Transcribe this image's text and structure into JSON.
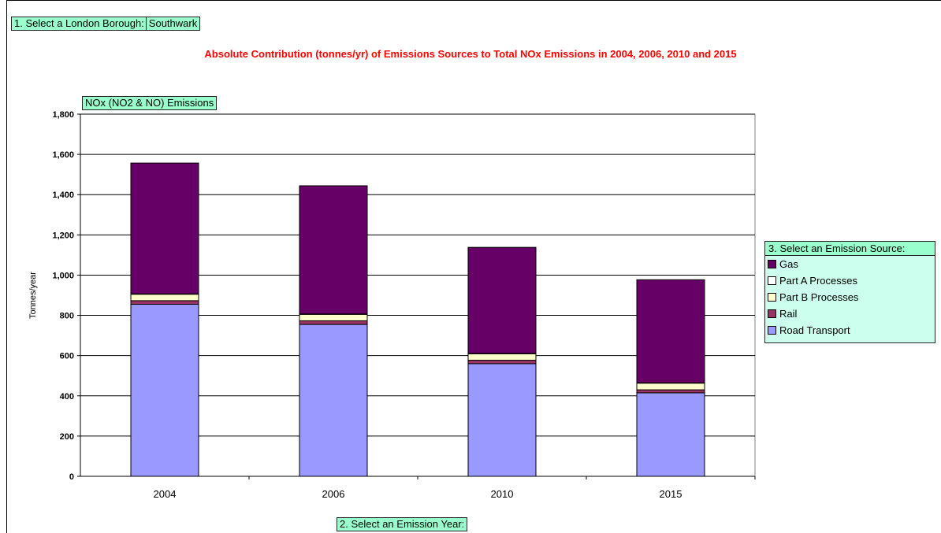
{
  "controls": {
    "borough_label": "1. Select a London Borough:",
    "borough_value": "Southwark",
    "pollutant_value": "NOx (NO2 & NO) Emissions",
    "year_label": "2. Select an Emission Year:",
    "source_label": "3. Select an Emission Source:"
  },
  "colors": {
    "title": "#ff0000",
    "selector_fill": "#99ffcc",
    "legend_fill": "#ccffee"
  },
  "chart_data": {
    "type": "bar",
    "stacked": true,
    "title": "Absolute Contribution (tonnes/yr) of Emissions Sources to Total NOx Emissions in 2004, 2006, 2010 and 2015",
    "xlabel": "",
    "ylabel": "Tonnes/year",
    "ylim": [
      0,
      1800
    ],
    "yticks": [
      0,
      200,
      400,
      600,
      800,
      1000,
      1200,
      1400,
      1600,
      1800
    ],
    "ytick_labels": [
      "0",
      "200",
      "400",
      "600",
      "800",
      "1,000",
      "1,200",
      "1,400",
      "1,600",
      "1,800"
    ],
    "grid": true,
    "legend_position": "right",
    "categories": [
      "2004",
      "2006",
      "2010",
      "2015"
    ],
    "series": [
      {
        "name": "Road Transport",
        "color": "#9999ff",
        "values": [
          855,
          755,
          560,
          415
        ]
      },
      {
        "name": "Rail",
        "color": "#993366",
        "values": [
          18,
          18,
          17,
          15
        ]
      },
      {
        "name": "Part B Processes",
        "color": "#ffffcc",
        "values": [
          32,
          32,
          32,
          33
        ]
      },
      {
        "name": "Part A Processes",
        "color": "#ffffff",
        "values": [
          2,
          2,
          2,
          2
        ]
      },
      {
        "name": "Gas",
        "color": "#660066",
        "values": [
          650,
          637,
          527,
          512
        ]
      }
    ]
  }
}
